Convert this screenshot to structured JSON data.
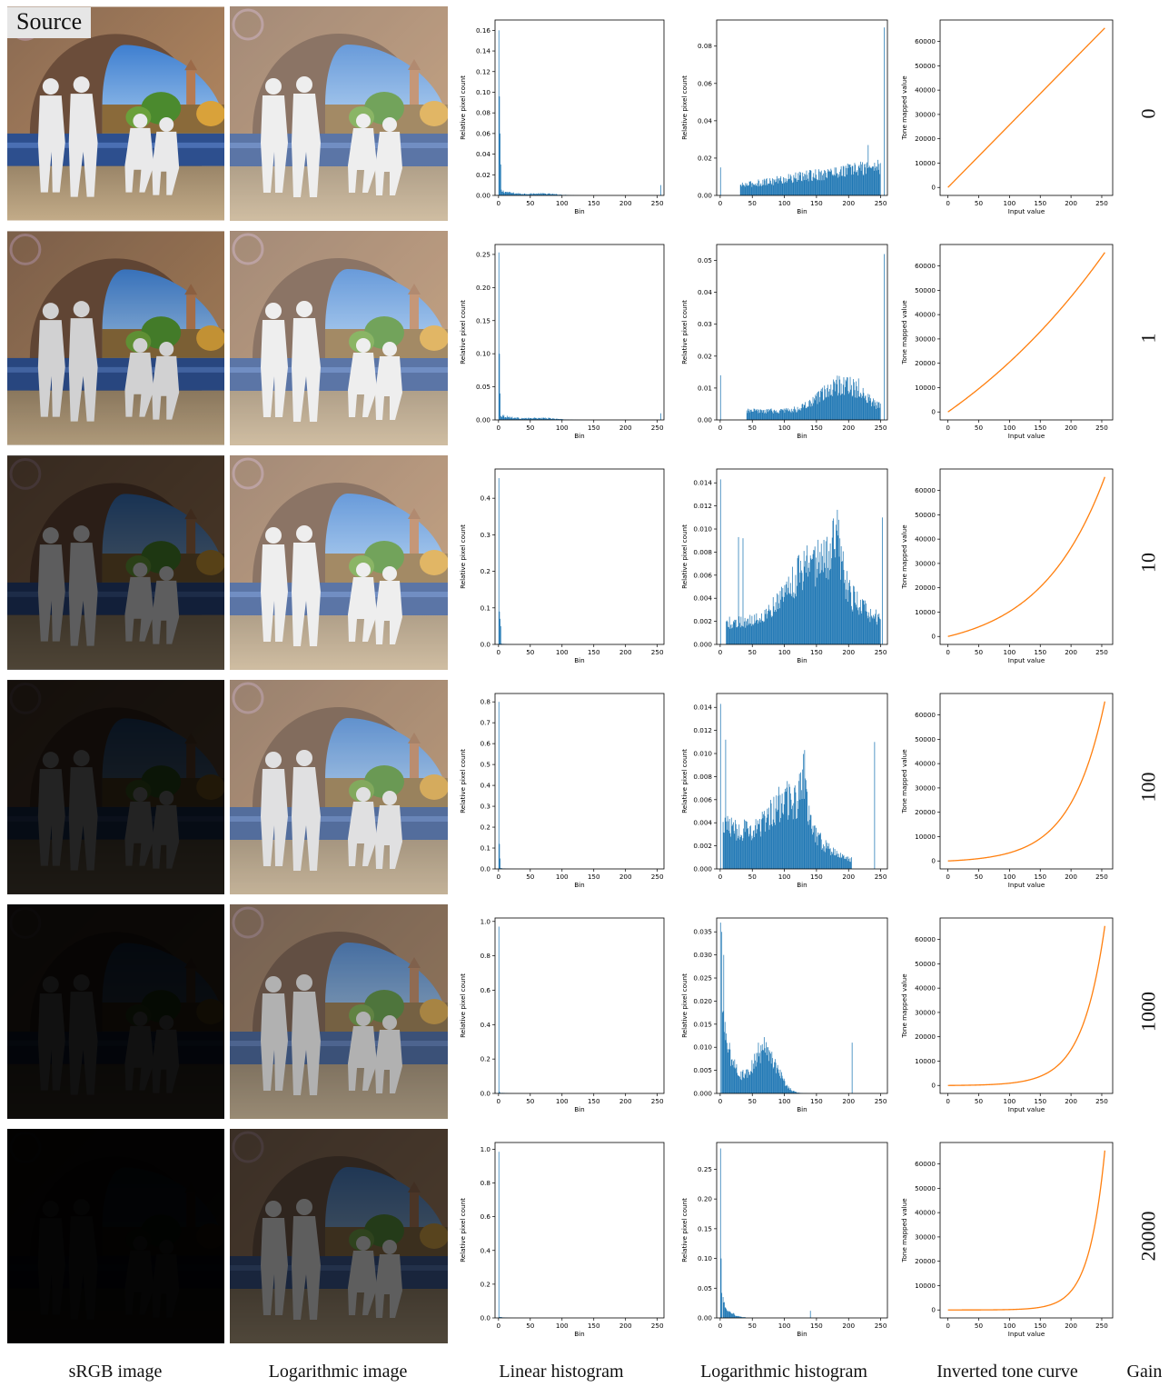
{
  "source_label": "Source",
  "column_captions": {
    "srgb": "sRGB image",
    "log_image": "Logarithmic image",
    "lin_hist": "Linear histogram",
    "log_hist": "Logarithmic histogram",
    "curve": "Inverted tone curve",
    "gain": "Gain"
  },
  "colors": {
    "histogram": "#1f77b4",
    "curve": "#ff7f0e"
  },
  "chart_data": [
    {
      "panel": "row-0-linear-histogram",
      "type": "bar",
      "xlabel": "Bin",
      "ylabel": "Relative pixel count",
      "ylim": [
        0,
        0.17
      ],
      "yticks": [
        "0.00",
        "0.02",
        "0.04",
        "0.06",
        "0.08",
        "0.10",
        "0.12",
        "0.14",
        "0.16"
      ],
      "xticks": [
        "0",
        "50",
        "100",
        "150",
        "200",
        "250"
      ],
      "peaks": [
        [
          0,
          0.16
        ],
        [
          1,
          0.096
        ],
        [
          2,
          0.06
        ],
        [
          3,
          0.03
        ],
        [
          255,
          0.01
        ]
      ]
    },
    {
      "panel": "row-0-log-histogram",
      "type": "bar",
      "xlabel": "Bin",
      "ylabel": "Relative pixel count",
      "ylim": [
        0,
        0.094
      ],
      "yticks": [
        "0.00",
        "0.02",
        "0.04",
        "0.06",
        "0.08"
      ],
      "xticks": [
        "0",
        "50",
        "100",
        "150",
        "200",
        "250"
      ],
      "peaks": [
        [
          0,
          0.015
        ],
        [
          255,
          0.09
        ],
        [
          230,
          0.027
        ]
      ]
    },
    {
      "panel": "row-0-tone-curve",
      "type": "line",
      "xlabel": "Input value",
      "ylabel": "Tone mapped value",
      "gain": 0,
      "xlim": [
        0,
        255
      ],
      "ylim": [
        0,
        65535
      ],
      "yticks": [
        "0",
        "10000",
        "20000",
        "30000",
        "40000",
        "50000",
        "60000"
      ],
      "xticks": [
        "0",
        "50",
        "100",
        "150",
        "200",
        "250"
      ]
    },
    {
      "panel": "row-1-linear-histogram",
      "type": "bar",
      "xlabel": "Bin",
      "ylabel": "Relative pixel count",
      "ylim": [
        0,
        0.265
      ],
      "yticks": [
        "0.00",
        "0.05",
        "0.10",
        "0.15",
        "0.20",
        "0.25"
      ],
      "xticks": [
        "0",
        "50",
        "100",
        "150",
        "200",
        "250"
      ],
      "peaks": [
        [
          0,
          0.253
        ],
        [
          1,
          0.1
        ],
        [
          2,
          0.04
        ],
        [
          255,
          0.01
        ]
      ]
    },
    {
      "panel": "row-1-log-histogram",
      "type": "bar",
      "xlabel": "Bin",
      "ylabel": "Relative pixel count",
      "ylim": [
        0,
        0.055
      ],
      "yticks": [
        "0.00",
        "0.01",
        "0.02",
        "0.03",
        "0.04",
        "0.05"
      ],
      "xticks": [
        "0",
        "50",
        "100",
        "150",
        "200",
        "250"
      ],
      "peaks": [
        [
          0,
          0.014
        ],
        [
          255,
          0.052
        ],
        [
          215,
          0.013
        ]
      ]
    },
    {
      "panel": "row-1-tone-curve",
      "type": "line",
      "xlabel": "Input value",
      "ylabel": "Tone mapped value",
      "gain": 1,
      "xlim": [
        0,
        255
      ],
      "ylim": [
        0,
        65535
      ],
      "yticks": [
        "0",
        "10000",
        "20000",
        "30000",
        "40000",
        "50000",
        "60000"
      ],
      "xticks": [
        "0",
        "50",
        "100",
        "150",
        "200",
        "250"
      ]
    },
    {
      "panel": "row-2-linear-histogram",
      "type": "bar",
      "xlabel": "Bin",
      "ylabel": "Relative pixel count",
      "ylim": [
        0,
        0.48
      ],
      "yticks": [
        "0.0",
        "0.1",
        "0.2",
        "0.3",
        "0.4"
      ],
      "xticks": [
        "0",
        "50",
        "100",
        "150",
        "200",
        "250"
      ],
      "peaks": [
        [
          0,
          0.455
        ],
        [
          1,
          0.09
        ],
        [
          2,
          0.07
        ],
        [
          3,
          0.05
        ]
      ]
    },
    {
      "panel": "row-2-log-histogram",
      "type": "bar",
      "xlabel": "Bin",
      "ylabel": "Relative pixel count",
      "ylim": [
        0,
        0.0152
      ],
      "yticks": [
        "0.000",
        "0.002",
        "0.004",
        "0.006",
        "0.008",
        "0.010",
        "0.012",
        "0.014"
      ],
      "xticks": [
        "0",
        "50",
        "100",
        "150",
        "200",
        "250"
      ],
      "peaks": [
        [
          0,
          0.0143
        ],
        [
          28,
          0.0093
        ],
        [
          35,
          0.0092
        ],
        [
          184,
          0.0108
        ],
        [
          252,
          0.011
        ]
      ]
    },
    {
      "panel": "row-2-tone-curve",
      "type": "line",
      "xlabel": "Input value",
      "ylabel": "Tone mapped value",
      "gain": 10,
      "xlim": [
        0,
        255
      ],
      "ylim": [
        0,
        65535
      ],
      "yticks": [
        "0",
        "10000",
        "20000",
        "30000",
        "40000",
        "50000",
        "60000"
      ],
      "xticks": [
        "0",
        "50",
        "100",
        "150",
        "200",
        "250"
      ]
    },
    {
      "panel": "row-3-linear-histogram",
      "type": "bar",
      "xlabel": "Bin",
      "ylabel": "Relative pixel count",
      "ylim": [
        0,
        0.84
      ],
      "yticks": [
        "0.0",
        "0.1",
        "0.2",
        "0.3",
        "0.4",
        "0.5",
        "0.6",
        "0.7",
        "0.8"
      ],
      "xticks": [
        "0",
        "50",
        "100",
        "150",
        "200",
        "250"
      ],
      "peaks": [
        [
          0,
          0.8
        ],
        [
          1,
          0.12
        ],
        [
          2,
          0.05
        ]
      ]
    },
    {
      "panel": "row-3-log-histogram",
      "type": "bar",
      "xlabel": "Bin",
      "ylabel": "Relative pixel count",
      "ylim": [
        0,
        0.0152
      ],
      "yticks": [
        "0.000",
        "0.002",
        "0.004",
        "0.006",
        "0.008",
        "0.010",
        "0.012",
        "0.014"
      ],
      "xticks": [
        "0",
        "50",
        "100",
        "150",
        "200",
        "250"
      ],
      "peaks": [
        [
          0,
          0.0143
        ],
        [
          8,
          0.0112
        ],
        [
          131,
          0.0103
        ],
        [
          240,
          0.011
        ]
      ]
    },
    {
      "panel": "row-3-tone-curve",
      "type": "line",
      "xlabel": "Input value",
      "ylabel": "Tone mapped value",
      "gain": 100,
      "xlim": [
        0,
        255
      ],
      "ylim": [
        0,
        65535
      ],
      "yticks": [
        "0",
        "10000",
        "20000",
        "30000",
        "40000",
        "50000",
        "60000"
      ],
      "xticks": [
        "0",
        "50",
        "100",
        "150",
        "200",
        "250"
      ]
    },
    {
      "panel": "row-4-linear-histogram",
      "type": "bar",
      "xlabel": "Bin",
      "ylabel": "Relative pixel count",
      "ylim": [
        0,
        1.02
      ],
      "yticks": [
        "0.0",
        "0.2",
        "0.4",
        "0.6",
        "0.8",
        "1.0"
      ],
      "xticks": [
        "0",
        "50",
        "100",
        "150",
        "200",
        "250"
      ],
      "peaks": [
        [
          0,
          0.97
        ],
        [
          1,
          0.01
        ]
      ]
    },
    {
      "panel": "row-4-log-histogram",
      "type": "bar",
      "xlabel": "Bin",
      "ylabel": "Relative pixel count",
      "ylim": [
        0,
        0.038
      ],
      "yticks": [
        "0.000",
        "0.005",
        "0.010",
        "0.015",
        "0.020",
        "0.025",
        "0.030",
        "0.035"
      ],
      "xticks": [
        "0",
        "50",
        "100",
        "150",
        "200",
        "250"
      ],
      "peaks": [
        [
          0,
          0.037
        ],
        [
          2,
          0.035
        ],
        [
          5,
          0.03
        ],
        [
          73,
          0.01
        ],
        [
          205,
          0.011
        ]
      ]
    },
    {
      "panel": "row-4-tone-curve",
      "type": "line",
      "xlabel": "Input value",
      "ylabel": "Tone mapped value",
      "gain": 1000,
      "xlim": [
        0,
        255
      ],
      "ylim": [
        0,
        65535
      ],
      "yticks": [
        "0",
        "10000",
        "20000",
        "30000",
        "40000",
        "50000",
        "60000"
      ],
      "xticks": [
        "0",
        "50",
        "100",
        "150",
        "200",
        "250"
      ]
    },
    {
      "panel": "row-5-linear-histogram",
      "type": "bar",
      "xlabel": "Bin",
      "ylabel": "Relative pixel count",
      "ylim": [
        0,
        1.04
      ],
      "yticks": [
        "0.0",
        "0.2",
        "0.4",
        "0.6",
        "0.8",
        "1.0"
      ],
      "xticks": [
        "0",
        "50",
        "100",
        "150",
        "200",
        "250"
      ],
      "peaks": [
        [
          0,
          0.985
        ],
        [
          1,
          0.005
        ]
      ]
    },
    {
      "panel": "row-5-log-histogram",
      "type": "bar",
      "xlabel": "Bin",
      "ylabel": "Relative pixel count",
      "ylim": [
        0,
        0.295
      ],
      "yticks": [
        "0.00",
        "0.05",
        "0.10",
        "0.15",
        "0.20",
        "0.25"
      ],
      "xticks": [
        "0",
        "50",
        "100",
        "150",
        "200",
        "250"
      ],
      "peaks": [
        [
          0,
          0.285
        ],
        [
          1,
          0.1
        ],
        [
          2,
          0.042
        ],
        [
          140,
          0.012
        ]
      ]
    },
    {
      "panel": "row-5-tone-curve",
      "type": "line",
      "xlabel": "Input value",
      "ylabel": "Tone mapped value",
      "gain": 20000,
      "xlim": [
        0,
        255
      ],
      "ylim": [
        0,
        65535
      ],
      "yticks": [
        "0",
        "10000",
        "20000",
        "30000",
        "40000",
        "50000",
        "60000"
      ],
      "xticks": [
        "0",
        "50",
        "100",
        "150",
        "200",
        "250"
      ]
    }
  ],
  "rows": [
    {
      "gain_label": "0",
      "srgb_exposure": 1.0,
      "log_exposure": 1.0
    },
    {
      "gain_label": "1",
      "srgb_exposure": 0.9,
      "log_exposure": 1.0
    },
    {
      "gain_label": "10",
      "srgb_exposure": 0.4,
      "log_exposure": 1.0
    },
    {
      "gain_label": "100",
      "srgb_exposure": 0.15,
      "log_exposure": 0.95
    },
    {
      "gain_label": "1000",
      "srgb_exposure": 0.07,
      "log_exposure": 0.75
    },
    {
      "gain_label": "20000",
      "srgb_exposure": 0.02,
      "log_exposure": 0.4
    }
  ]
}
